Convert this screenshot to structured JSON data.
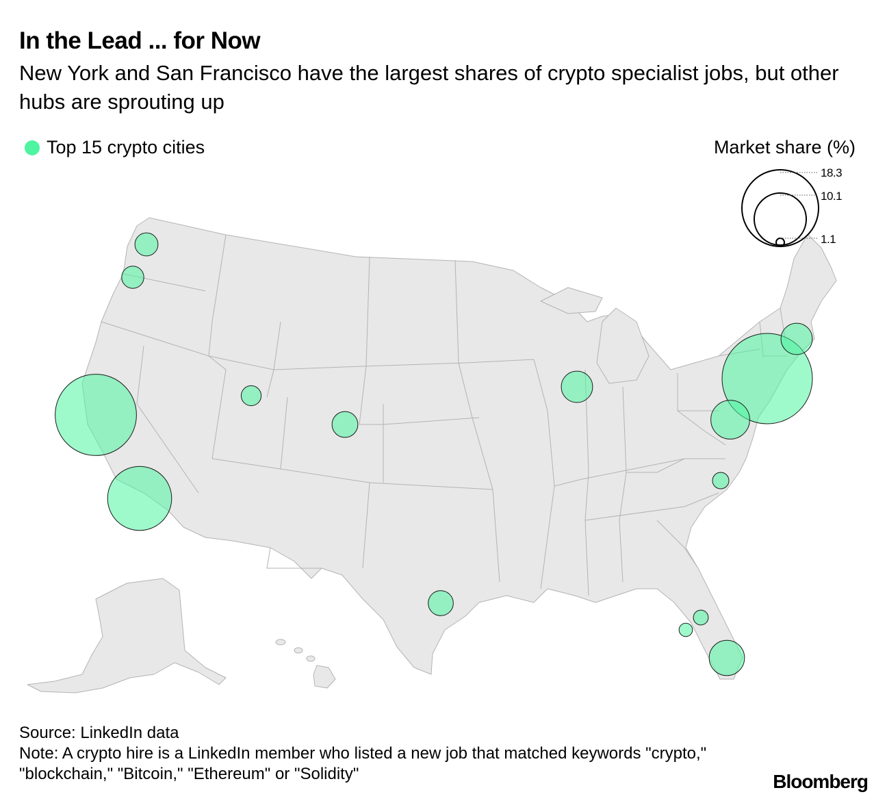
{
  "header": {
    "title": "In the Lead ... for Now",
    "subtitle": "New York and San Francisco have the largest shares of crypto specialist jobs, but other hubs are sprouting up"
  },
  "legend": {
    "label": "Top 15 crypto cities",
    "color": "#4ef4a0"
  },
  "size_legend": {
    "title": "Market share (%)",
    "values": [
      "18.3",
      "10.1",
      "1.1"
    ]
  },
  "map_data": {
    "cities": [
      {
        "value": 18.3
      },
      {
        "value": 14.8
      },
      {
        "value": 9.2
      },
      {
        "value": 3.4
      },
      {
        "value": 2.8
      },
      {
        "value": 2.2
      },
      {
        "value": 2.2
      },
      {
        "value": 1.5
      },
      {
        "value": 1.4
      },
      {
        "value": 1.2
      },
      {
        "value": 1.1
      },
      {
        "value": 0.9
      },
      {
        "value": 0.6
      },
      {
        "value": 0.5
      },
      {
        "value": 0.4
      }
    ]
  },
  "footer": {
    "source": "Source: LinkedIn data",
    "note": "Note: A crypto hire is a LinkedIn member who listed a new job that matched keywords \"crypto,\" \"blockchain,\" \"Bitcoin,\" \"Ethereum\" or \"Solidity\"",
    "brand": "Bloomberg"
  }
}
